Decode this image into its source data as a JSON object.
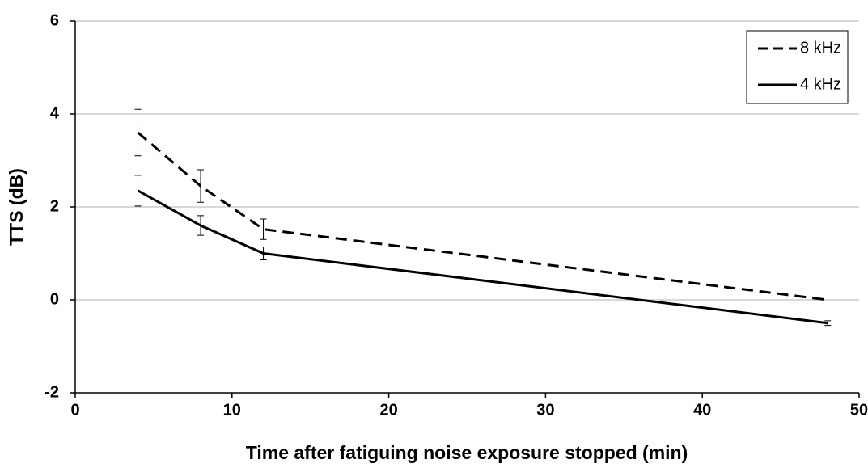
{
  "chart_data": {
    "type": "line",
    "x_label": "Time after fatiguing noise exposure stopped (min)",
    "y_label": "TTS (dB)",
    "x": [
      4,
      8,
      12,
      48
    ],
    "series": [
      {
        "name": "8 kHz",
        "color": "#000000",
        "dash": true,
        "values": [
          3.6,
          2.45,
          1.52,
          0.0
        ],
        "errors": [
          0.5,
          0.35,
          0.22,
          null
        ]
      },
      {
        "name": "4 kHz",
        "color": "#000000",
        "dash": false,
        "values": [
          2.35,
          1.6,
          1.0,
          -0.5
        ],
        "errors": [
          0.33,
          0.21,
          0.14,
          0.05
        ]
      }
    ],
    "xlim": [
      0,
      50
    ],
    "xticks": [
      0,
      10,
      20,
      30,
      40,
      50
    ],
    "ylim": [
      -2,
      6
    ],
    "yticks": [
      -2,
      0,
      2,
      4,
      6
    ],
    "grid": true,
    "legend": "top-right"
  }
}
